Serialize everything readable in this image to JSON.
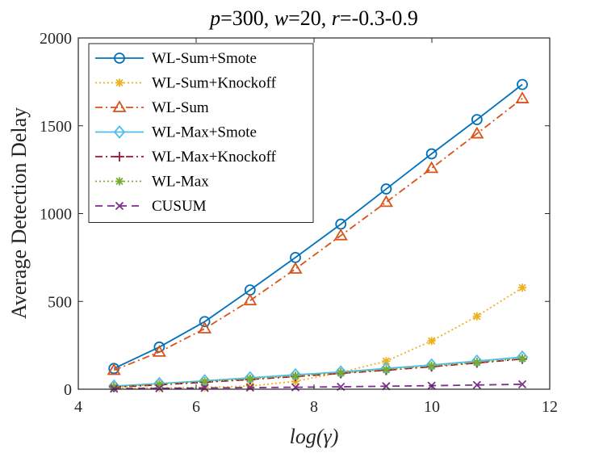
{
  "chart_data": {
    "type": "line",
    "title_parts": [
      {
        "text": "p",
        "italic": true
      },
      {
        "text": "=300, ",
        "italic": false
      },
      {
        "text": "w",
        "italic": true
      },
      {
        "text": "=20, ",
        "italic": false
      },
      {
        "text": "r",
        "italic": true
      },
      {
        "text": "=-0.3-0.9",
        "italic": false
      }
    ],
    "xlabel": "log(γ)",
    "ylabel": "Average Detection Delay",
    "xlim": [
      4,
      12
    ],
    "ylim": [
      0,
      2000
    ],
    "xticks": [
      "4",
      "6",
      "8",
      "10",
      "12"
    ],
    "yticks": [
      "0",
      "500",
      "1000",
      "1500",
      "2000"
    ],
    "x": [
      4.605,
      5.375,
      6.145,
      6.915,
      7.685,
      8.455,
      9.225,
      9.995,
      10.765,
      11.535
    ],
    "legend_position": "top-left",
    "series": [
      {
        "name": "WL-Sum+Smote",
        "color": "#0072BD",
        "dash": "solid",
        "marker": "circle",
        "values": [
          118,
          240,
          385,
          565,
          750,
          940,
          1140,
          1340,
          1535,
          1735
        ]
      },
      {
        "name": "WL-Sum+Knockoff",
        "color": "#EDB120",
        "dash": "dotted",
        "marker": "star",
        "values": [
          8,
          8,
          10,
          18,
          45,
          95,
          160,
          275,
          415,
          578
        ]
      },
      {
        "name": "WL-Sum",
        "color": "#D95319",
        "dash": "dashdot",
        "marker": "triangle",
        "values": [
          108,
          212,
          345,
          505,
          685,
          875,
          1065,
          1258,
          1455,
          1655
        ]
      },
      {
        "name": "WL-Max+Smote",
        "color": "#4DBEEE",
        "dash": "solid",
        "marker": "diamond",
        "values": [
          18,
          32,
          48,
          65,
          82,
          98,
          118,
          138,
          160,
          183
        ]
      },
      {
        "name": "WL-Max+Knockoff",
        "color": "#A2142F",
        "dash": "dashdot",
        "marker": "plus",
        "values": [
          12,
          25,
          40,
          55,
          72,
          90,
          108,
          128,
          150,
          172
        ]
      },
      {
        "name": "WL-Max",
        "color": "#77AC30",
        "dash": "dotted",
        "marker": "star",
        "values": [
          15,
          28,
          44,
          59,
          76,
          93,
          112,
          132,
          153,
          175
        ]
      },
      {
        "name": "CUSUM",
        "color": "#7E2F8E",
        "dash": "dashed",
        "marker": "x",
        "values": [
          3,
          5,
          7,
          9,
          11,
          14,
          17,
          20,
          24,
          28
        ]
      }
    ]
  }
}
